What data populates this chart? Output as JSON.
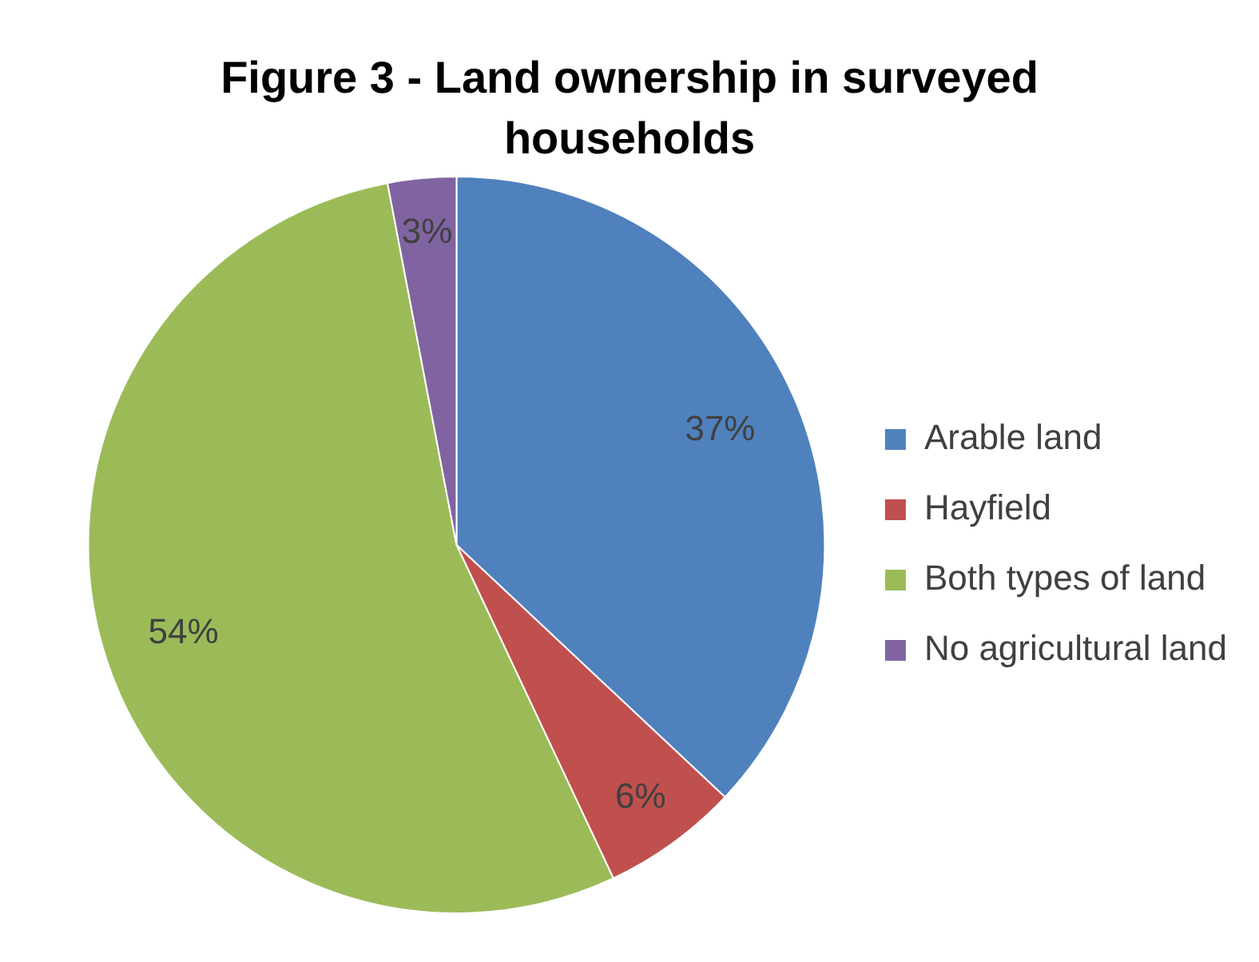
{
  "chart_data": {
    "type": "pie",
    "title": "Figure 3 - Land ownership in surveyed households",
    "categories": [
      "Arable land",
      "Hayfield",
      "Both types of land",
      "No agricultural land"
    ],
    "values": [
      37,
      6,
      54,
      3
    ],
    "colors": [
      "#4f81bd",
      "#c0504d",
      "#9bbb59",
      "#8064a2"
    ],
    "value_labels": [
      "37%",
      "6%",
      "54%",
      "3%"
    ],
    "legend": "right"
  }
}
